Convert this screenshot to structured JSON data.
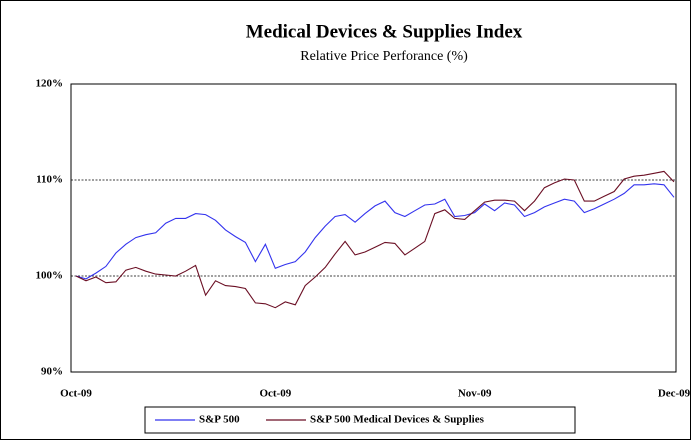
{
  "chart_data": {
    "type": "line",
    "title": "Medical Devices & Supplies Index",
    "subtitle": "Relative Price Perforance (%)",
    "categories": [
      "Oct-09",
      null,
      null,
      null,
      null,
      null,
      null,
      null,
      null,
      null,
      null,
      null,
      null,
      null,
      null,
      null,
      null,
      null,
      null,
      null,
      "Oct-09",
      null,
      null,
      null,
      null,
      null,
      null,
      null,
      null,
      null,
      null,
      null,
      null,
      null,
      null,
      null,
      null,
      null,
      null,
      null,
      "Nov-09",
      null,
      null,
      null,
      null,
      null,
      null,
      null,
      null,
      null,
      null,
      null,
      null,
      null,
      null,
      null,
      null,
      null,
      null,
      null,
      "Dec-09"
    ],
    "series": [
      {
        "name": "S&P 500",
        "color": "#3333ee",
        "values": [
          100,
          99.7,
          100.3,
          101,
          102.4,
          103.3,
          104,
          104.3,
          104.5,
          105.5,
          106,
          106,
          106.5,
          106.4,
          105.8,
          104.8,
          104.1,
          103.5,
          101.5,
          103.3,
          100.8,
          101.2,
          101.5,
          102.5,
          104,
          105.2,
          106.2,
          106.4,
          105.6,
          106.5,
          107.3,
          107.8,
          106.6,
          106.2,
          106.8,
          107.4,
          107.5,
          108,
          106.2,
          106.3,
          106.6,
          107.5,
          106.8,
          107.6,
          107.4,
          106.2,
          106.6,
          107.2,
          107.6,
          108,
          107.8,
          106.6,
          107,
          107.5,
          108,
          108.6,
          109.5,
          109.5,
          109.6,
          109.5,
          108.2
        ]
      },
      {
        "name": "S&P 500 Medical Devices & Supplies",
        "color": "#6b0f24",
        "values": [
          100,
          99.5,
          99.9,
          99.3,
          99.4,
          100.6,
          100.9,
          100.5,
          100.2,
          100.1,
          100,
          100.5,
          101.1,
          98,
          99.5,
          99,
          98.9,
          98.7,
          97.2,
          97.1,
          96.7,
          97.3,
          97,
          99,
          99.9,
          100.9,
          102.3,
          103.6,
          102.2,
          102.5,
          103,
          103.5,
          103.4,
          102.2,
          102.9,
          103.6,
          106.5,
          106.9,
          106,
          105.9,
          106.8,
          107.7,
          107.9,
          107.9,
          107.8,
          106.8,
          107.8,
          109.2,
          109.7,
          110.1,
          110,
          107.8,
          107.8,
          108.3,
          108.8,
          110.1,
          110.4,
          110.5,
          110.7,
          110.9,
          109.8
        ]
      }
    ],
    "ylim": [
      90,
      120
    ],
    "yticks": [
      {
        "value": 90,
        "label": "90%"
      },
      {
        "value": 100,
        "label": "100%"
      },
      {
        "value": 110,
        "label": "110%"
      },
      {
        "value": 120,
        "label": "120%"
      }
    ],
    "grid": true,
    "legend": "bottom"
  }
}
